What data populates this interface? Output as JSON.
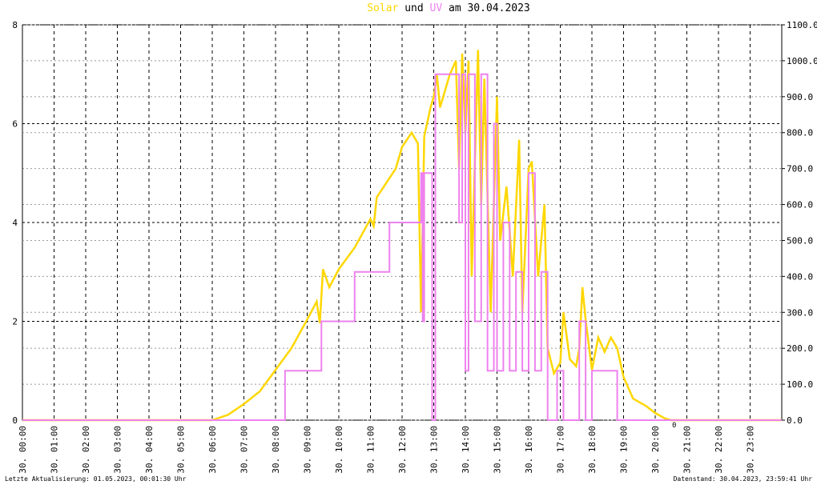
{
  "chart_data": {
    "type": "line",
    "title_connector": "und",
    "title_date": "am 30.04.2023",
    "step_series": "UV",
    "xlim": [
      0,
      24
    ],
    "xticks": [
      {
        "value": 0,
        "label": "30. 00:00"
      },
      {
        "value": 1,
        "label": "30. 01:00"
      },
      {
        "value": 2,
        "label": "30. 02:00"
      },
      {
        "value": 3,
        "label": "30. 03:00"
      },
      {
        "value": 4,
        "label": "30. 04:00"
      },
      {
        "value": 5,
        "label": "30. 05:00"
      },
      {
        "value": 6,
        "label": "30. 06:00"
      },
      {
        "value": 7,
        "label": "30. 07:00"
      },
      {
        "value": 8,
        "label": "30. 08:00"
      },
      {
        "value": 9,
        "label": "30. 09:00"
      },
      {
        "value": 10,
        "label": "30. 10:00"
      },
      {
        "value": 11,
        "label": "30. 11:00"
      },
      {
        "value": 12,
        "label": "30. 12:00"
      },
      {
        "value": 13,
        "label": "30. 13:00"
      },
      {
        "value": 14,
        "label": "30. 14:00"
      },
      {
        "value": 15,
        "label": "30. 15:00"
      },
      {
        "value": 16,
        "label": "30. 16:00"
      },
      {
        "value": 17,
        "label": "30. 17:00"
      },
      {
        "value": 18,
        "label": "30. 18:00"
      },
      {
        "value": 19,
        "label": "30. 19:00"
      },
      {
        "value": 20,
        "label": "30. 20:00"
      },
      {
        "value": 21,
        "label": "30. 21:00"
      },
      {
        "value": 22,
        "label": "30. 22:00"
      },
      {
        "value": 23,
        "label": "30. 23:00"
      }
    ],
    "ylim": [
      0,
      8
    ],
    "yticks": [
      0,
      2,
      4,
      6,
      8
    ],
    "y2lim": [
      0,
      1100
    ],
    "y2ticks": [
      {
        "value": 0,
        "label": "0.0"
      },
      {
        "value": 100,
        "label": "100.0"
      },
      {
        "value": 200,
        "label": "200.0"
      },
      {
        "value": 300,
        "label": "300.0"
      },
      {
        "value": 400,
        "label": "400.0"
      },
      {
        "value": 500,
        "label": "500.0"
      },
      {
        "value": 600,
        "label": "600.0"
      },
      {
        "value": 700,
        "label": "700.0"
      },
      {
        "value": 800,
        "label": "800.0"
      },
      {
        "value": 900,
        "label": "900.0"
      },
      {
        "value": 1000,
        "label": "1000.0"
      },
      {
        "value": 1100,
        "label": "1100.0"
      }
    ],
    "grid": true,
    "annotations": [
      {
        "text": "0",
        "x": 20.6
      }
    ],
    "series": [
      {
        "name": "Solar",
        "color": "#ffd700",
        "axis": "y2",
        "x": [
          0,
          6,
          6.5,
          7,
          7.5,
          8,
          8.5,
          9,
          9.3,
          9.4,
          9.5,
          9.7,
          10,
          10.5,
          11,
          11.1,
          11.2,
          11.5,
          11.8,
          12,
          12.3,
          12.5,
          12.6,
          12.7,
          12.9,
          13,
          13.1,
          13.2,
          13.5,
          13.7,
          13.8,
          13.9,
          14,
          14.1,
          14.2,
          14.4,
          14.5,
          14.6,
          14.8,
          15,
          15.1,
          15.3,
          15.5,
          15.7,
          15.8,
          16,
          16.1,
          16.3,
          16.5,
          16.6,
          16.8,
          17,
          17.1,
          17.3,
          17.5,
          17.6,
          17.7,
          17.8,
          18,
          18.2,
          18.4,
          18.6,
          18.8,
          19,
          19.3,
          19.7,
          20,
          20.3,
          20.5,
          24
        ],
        "values": [
          0,
          0,
          15,
          45,
          80,
          140,
          200,
          280,
          330,
          270,
          420,
          370,
          420,
          480,
          560,
          540,
          620,
          660,
          700,
          760,
          800,
          770,
          300,
          790,
          870,
          900,
          960,
          870,
          960,
          1000,
          700,
          1020,
          800,
          1000,
          400,
          1030,
          600,
          950,
          300,
          900,
          500,
          650,
          400,
          780,
          300,
          700,
          720,
          400,
          600,
          200,
          130,
          160,
          300,
          170,
          150,
          200,
          370,
          280,
          140,
          230,
          190,
          230,
          200,
          120,
          60,
          40,
          20,
          5,
          0,
          0
        ]
      },
      {
        "name": "UV",
        "color": "#ee82ee",
        "axis": "y",
        "x": [
          0,
          8.3,
          9.45,
          10.5,
          11.6,
          12.6,
          12.65,
          12.7,
          12.95,
          13.05,
          13.8,
          13.9,
          14,
          14.1,
          14.3,
          14.5,
          14.7,
          14.9,
          15,
          15.2,
          15.4,
          15.6,
          15.8,
          16,
          16.2,
          16.4,
          16.6,
          16.9,
          17.1,
          17.6,
          17.8,
          18,
          18.8,
          24
        ],
        "values": [
          0,
          1,
          2,
          3,
          4,
          5,
          2,
          5,
          0,
          7,
          4,
          7,
          1,
          7,
          2,
          7,
          1,
          6,
          1,
          4,
          1,
          3,
          1,
          5,
          1,
          3,
          0,
          1,
          0,
          2,
          0,
          1,
          0,
          0
        ]
      }
    ],
    "footer_left": "Letzte Aktualisierung: 01.05.2023, 00:01:30 Uhr",
    "footer_right": "Datenstand: 30.04.2023, 23:59:41 Uhr"
  }
}
